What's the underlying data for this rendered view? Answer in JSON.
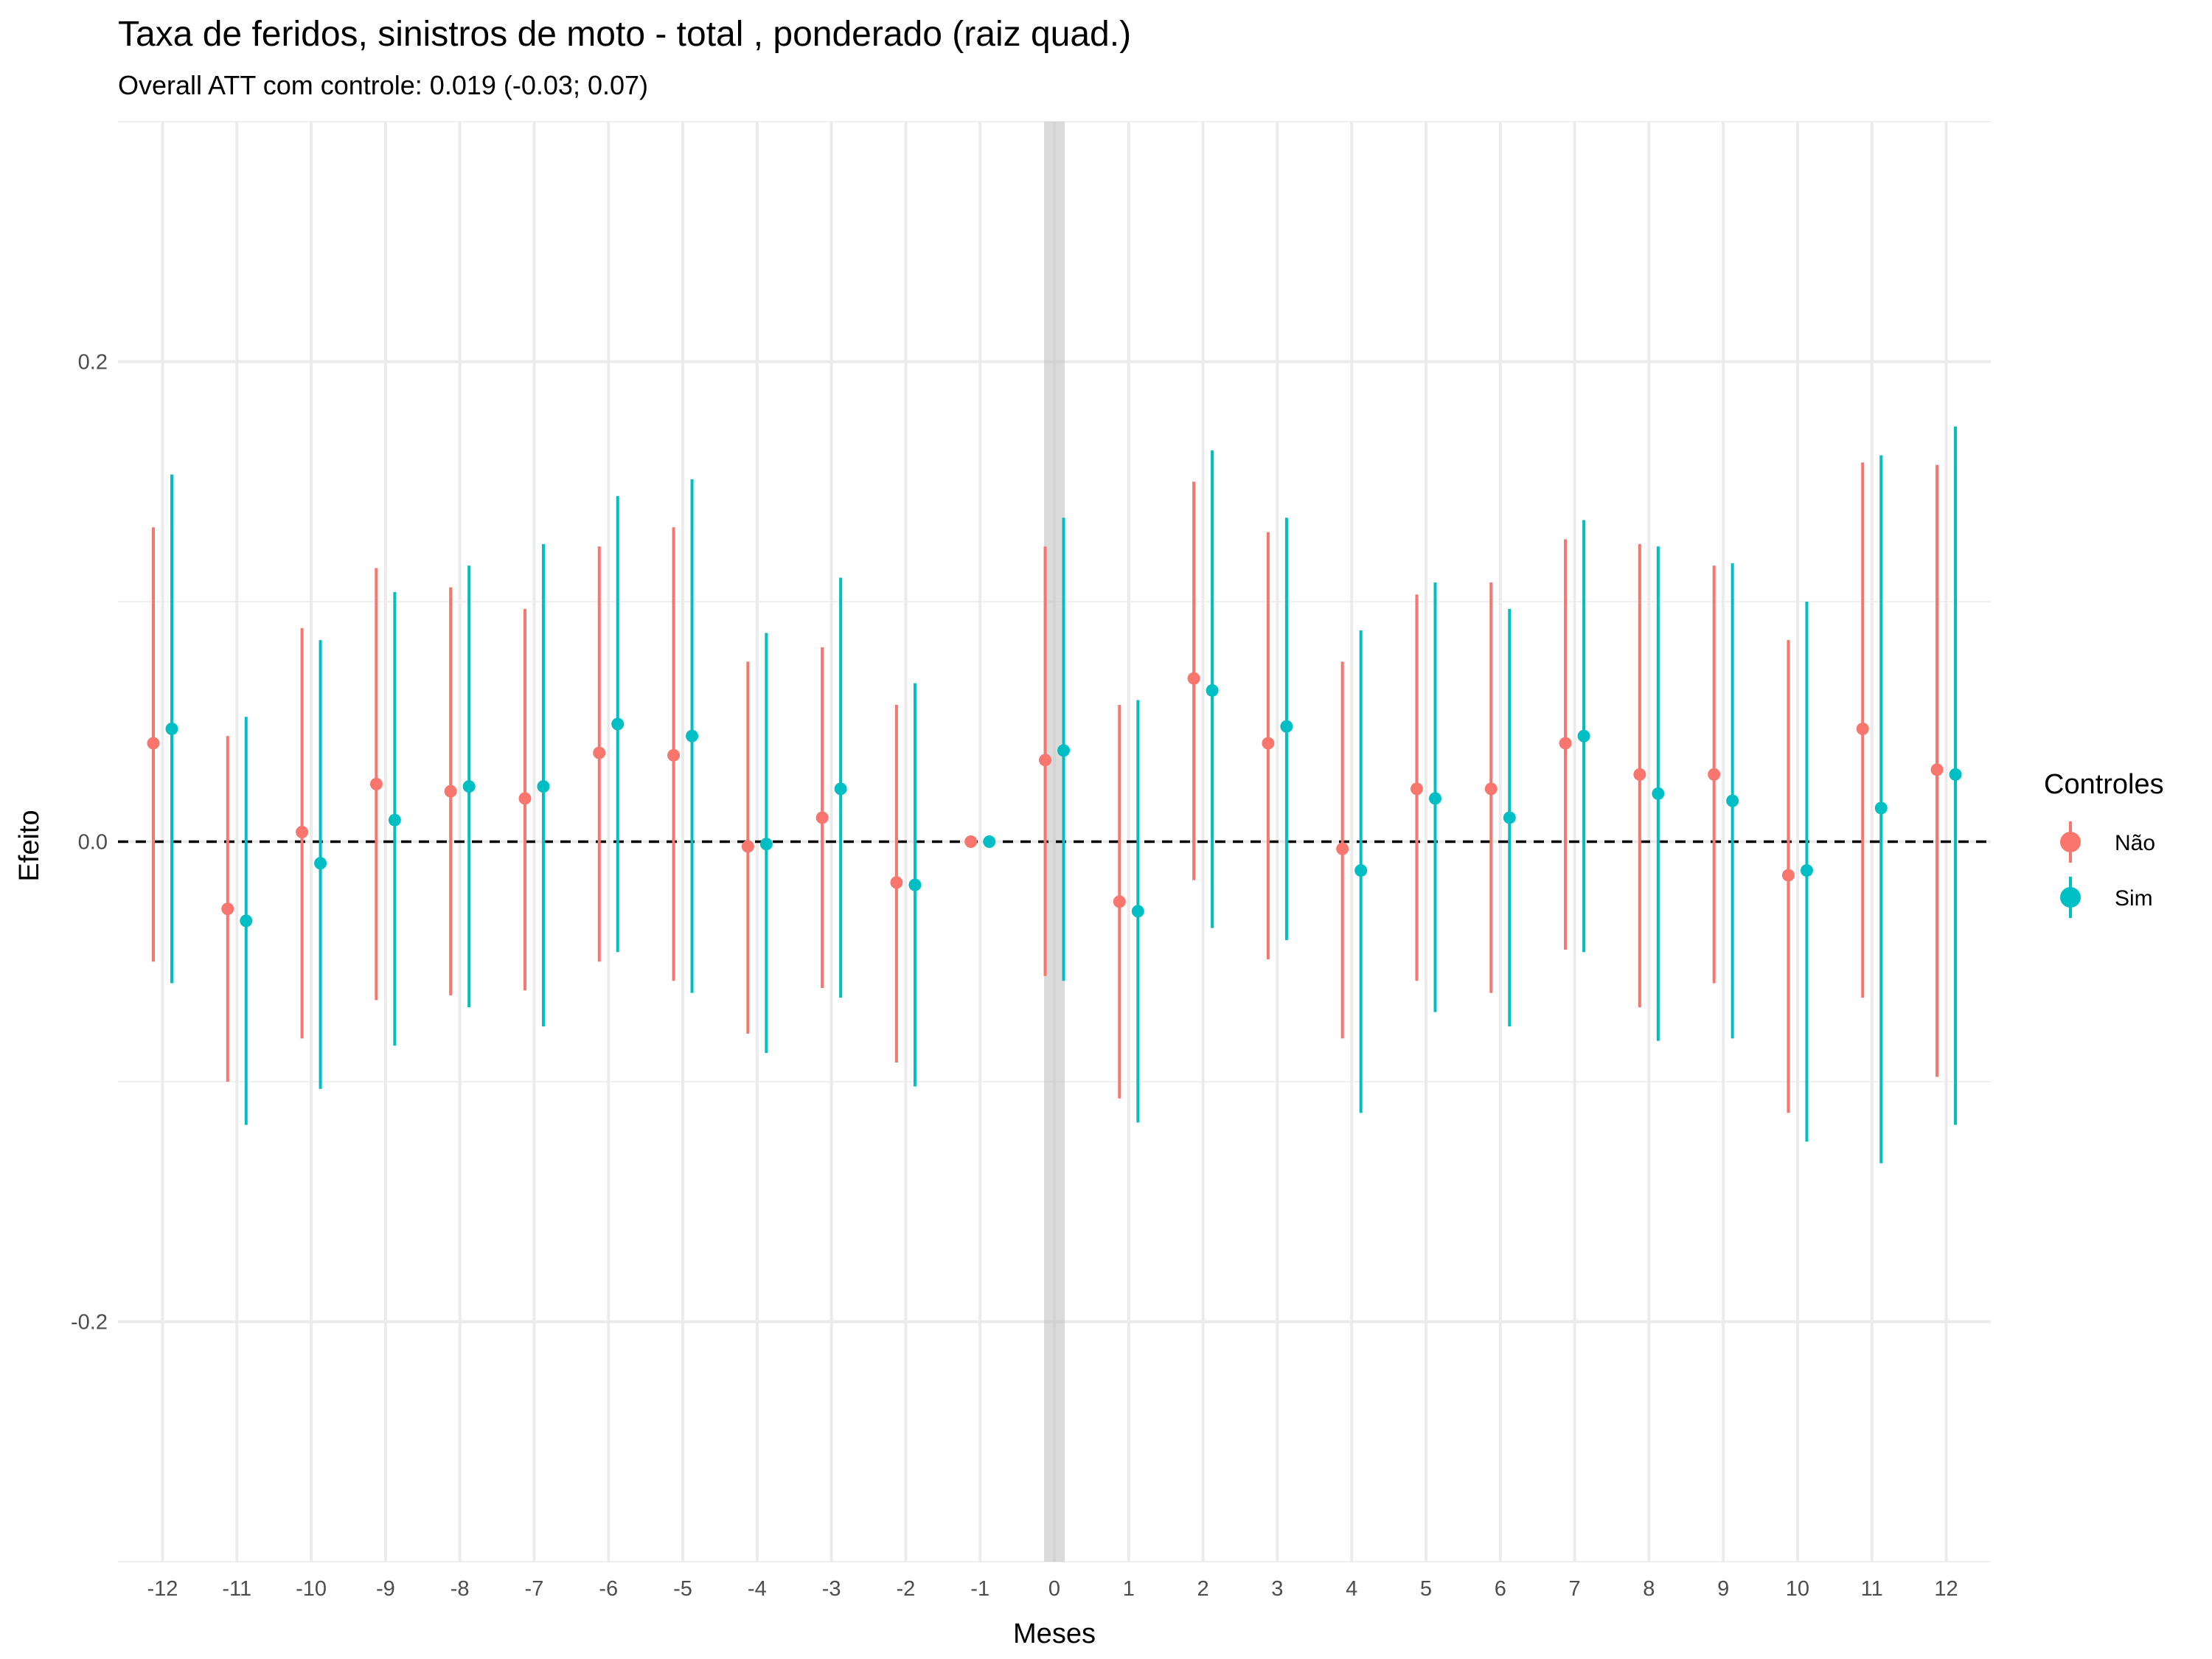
{
  "chart_data": {
    "type": "scatter",
    "title": "Taxa de feridos, sinistros de moto - total , ponderado  (raiz quad.)",
    "subtitle": "Overall ATT com controle: 0.019 (-0.03; 0.07)",
    "xlabel": "Meses",
    "ylabel": "Efeito",
    "ylim": [
      -0.3,
      0.3
    ],
    "y_ticks": [
      -0.2,
      0.0,
      0.2
    ],
    "y_tick_labels": [
      "-0.2",
      "0.0",
      "0.2"
    ],
    "x": [
      -12,
      -11,
      -10,
      -9,
      -8,
      -7,
      -6,
      -5,
      -4,
      -3,
      -2,
      -1,
      0,
      1,
      2,
      3,
      4,
      5,
      6,
      7,
      8,
      9,
      10,
      11,
      12
    ],
    "x_tick_labels": [
      "-12",
      "-11",
      "-10",
      "-9",
      "-8",
      "-7",
      "-6",
      "-5",
      "-4",
      "-3",
      "-2",
      "-1",
      "0",
      "1",
      "2",
      "3",
      "4",
      "5",
      "6",
      "7",
      "8",
      "9",
      "10",
      "11",
      "12"
    ],
    "reference_line_y": 0.0,
    "highlight_x": 0,
    "grid": true,
    "legend": {
      "title": "Controles",
      "placement": "right"
    },
    "series": [
      {
        "name": "Não",
        "color": "#F8766D",
        "values": [
          0.041,
          -0.028,
          0.004,
          0.024,
          0.021,
          0.018,
          0.037,
          0.036,
          -0.002,
          0.01,
          -0.017,
          0.0,
          0.034,
          -0.025,
          0.068,
          0.041,
          -0.003,
          0.022,
          0.022,
          0.041,
          0.028,
          0.028,
          -0.014,
          0.047,
          0.03
        ],
        "lower": [
          -0.05,
          -0.1,
          -0.082,
          -0.066,
          -0.064,
          -0.062,
          -0.05,
          -0.058,
          -0.08,
          -0.061,
          -0.092,
          0.0,
          -0.056,
          -0.107,
          -0.016,
          -0.049,
          -0.082,
          -0.058,
          -0.063,
          -0.045,
          -0.069,
          -0.059,
          -0.113,
          -0.065,
          -0.098
        ],
        "upper": [
          0.131,
          0.044,
          0.089,
          0.114,
          0.106,
          0.097,
          0.123,
          0.131,
          0.075,
          0.081,
          0.057,
          0.0,
          0.123,
          0.057,
          0.15,
          0.129,
          0.075,
          0.103,
          0.108,
          0.126,
          0.124,
          0.115,
          0.084,
          0.158,
          0.157
        ]
      },
      {
        "name": "Sim",
        "color": "#00BFC4",
        "values": [
          0.047,
          -0.033,
          -0.009,
          0.009,
          0.023,
          0.023,
          0.049,
          0.044,
          -0.001,
          0.022,
          -0.018,
          0.0,
          0.038,
          -0.029,
          0.063,
          0.048,
          -0.012,
          0.018,
          0.01,
          0.044,
          0.02,
          0.017,
          -0.012,
          0.014,
          0.028
        ],
        "lower": [
          -0.059,
          -0.118,
          -0.103,
          -0.085,
          -0.069,
          -0.077,
          -0.046,
          -0.063,
          -0.088,
          -0.065,
          -0.102,
          0.0,
          -0.058,
          -0.117,
          -0.036,
          -0.041,
          -0.113,
          -0.071,
          -0.077,
          -0.046,
          -0.083,
          -0.082,
          -0.125,
          -0.134,
          -0.118
        ],
        "upper": [
          0.153,
          0.052,
          0.084,
          0.104,
          0.115,
          0.124,
          0.144,
          0.151,
          0.087,
          0.11,
          0.066,
          0.0,
          0.135,
          0.059,
          0.163,
          0.135,
          0.088,
          0.108,
          0.097,
          0.134,
          0.123,
          0.116,
          0.1,
          0.161,
          0.173
        ]
      }
    ]
  }
}
